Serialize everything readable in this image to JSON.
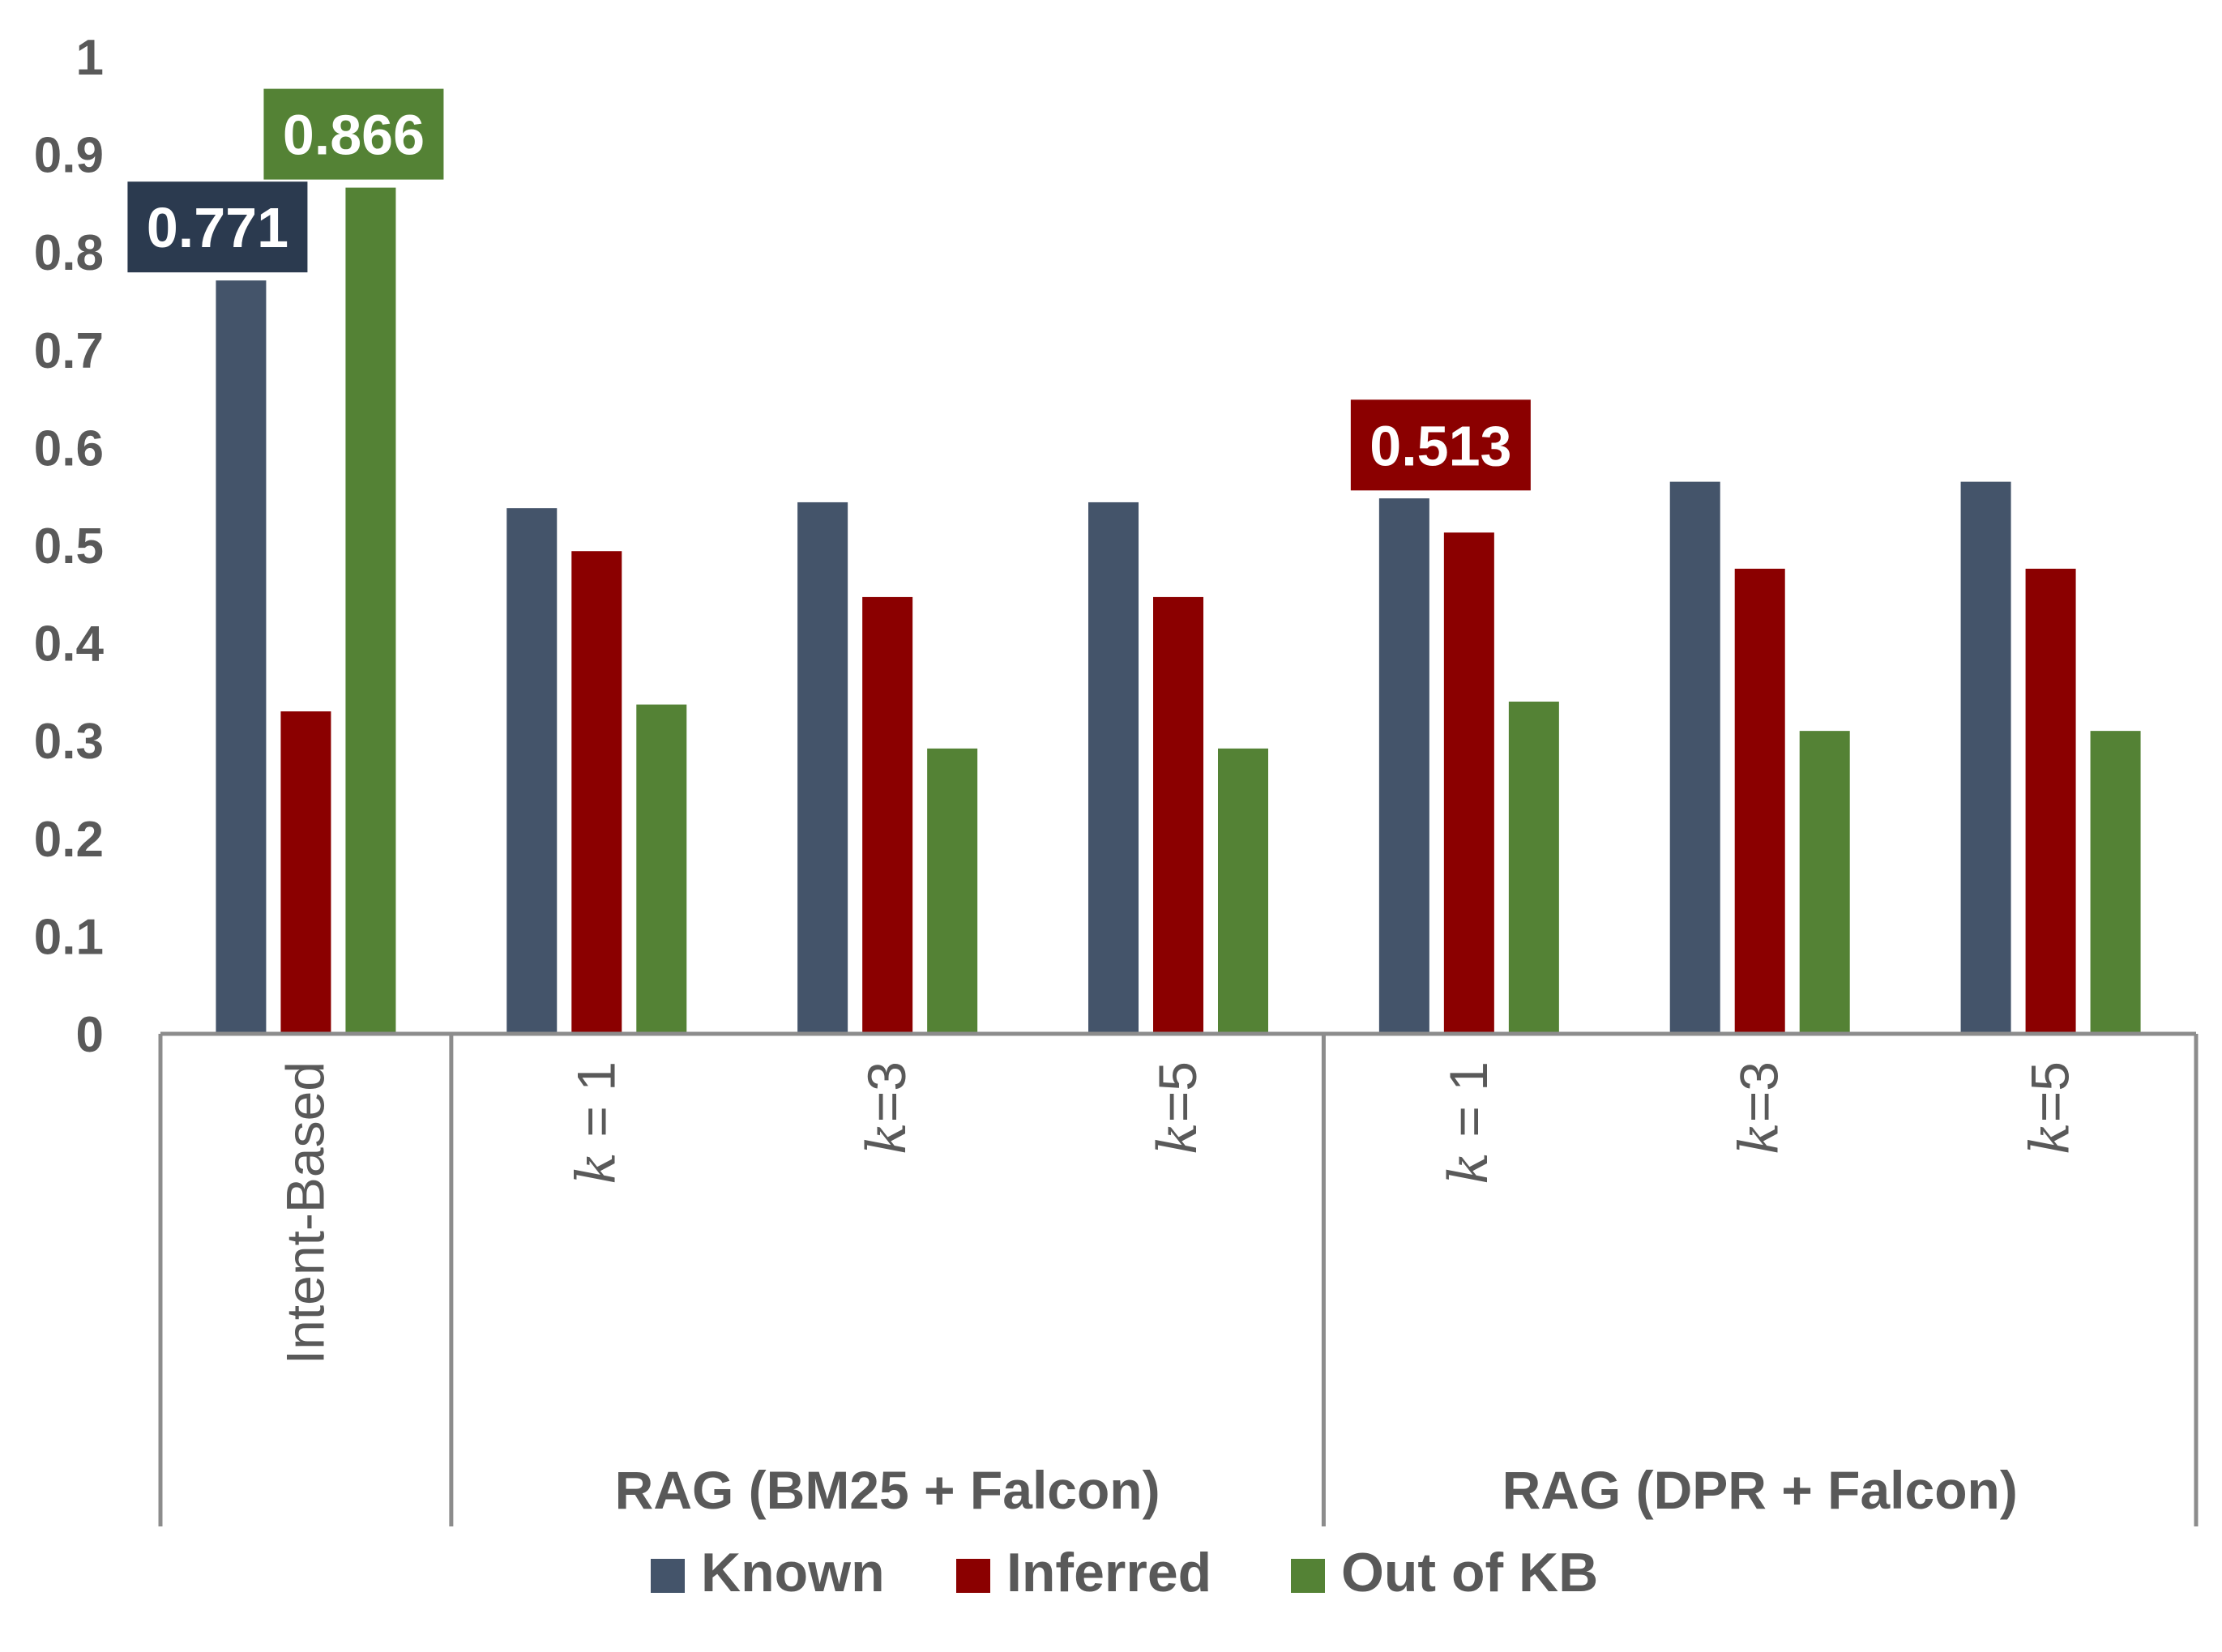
{
  "chart_data": {
    "type": "bar",
    "title": "",
    "xlabel": "",
    "ylabel": "",
    "ylim": [
      0,
      1
    ],
    "yticks": [
      "0",
      "0.1",
      "0.2",
      "0.3",
      "0.4",
      "0.5",
      "0.6",
      "0.7",
      "0.8",
      "0.9",
      "1"
    ],
    "categories": [
      {
        "label": "Intent-Based",
        "k": ""
      },
      {
        "label": " = 1",
        "k": "k"
      },
      {
        "label": "=3",
        "k": "k"
      },
      {
        "label": "=5",
        "k": "k"
      },
      {
        "label": " = 1",
        "k": "k"
      },
      {
        "label": "=3",
        "k": "k"
      },
      {
        "label": "=5",
        "k": "k"
      }
    ],
    "groups": [
      {
        "label": "RAG (BM25 + Falcon)",
        "categories": [
          1,
          2,
          3
        ]
      },
      {
        "label": "RAG (DPR  + Falcon)",
        "categories": [
          4,
          5,
          6
        ]
      }
    ],
    "series": [
      {
        "name": "Known",
        "color": "#44546a",
        "values": [
          0.771,
          0.538,
          0.544,
          0.544,
          0.548,
          0.565,
          0.565
        ]
      },
      {
        "name": "Inferred",
        "color": "#8b0000",
        "values": [
          0.33,
          0.494,
          0.447,
          0.447,
          0.513,
          0.476,
          0.476
        ]
      },
      {
        "name": "Out of KB",
        "color": "#548235",
        "values": [
          0.866,
          0.337,
          0.292,
          0.292,
          0.34,
          0.31,
          0.31
        ]
      }
    ],
    "data_labels": [
      {
        "series": 0,
        "category": 0,
        "text": "0.771"
      },
      {
        "series": 2,
        "category": 0,
        "text": "0.866"
      },
      {
        "series": 1,
        "category": 4,
        "text": "0.513"
      }
    ],
    "legend": {
      "position": "bottom"
    },
    "grid": false
  }
}
